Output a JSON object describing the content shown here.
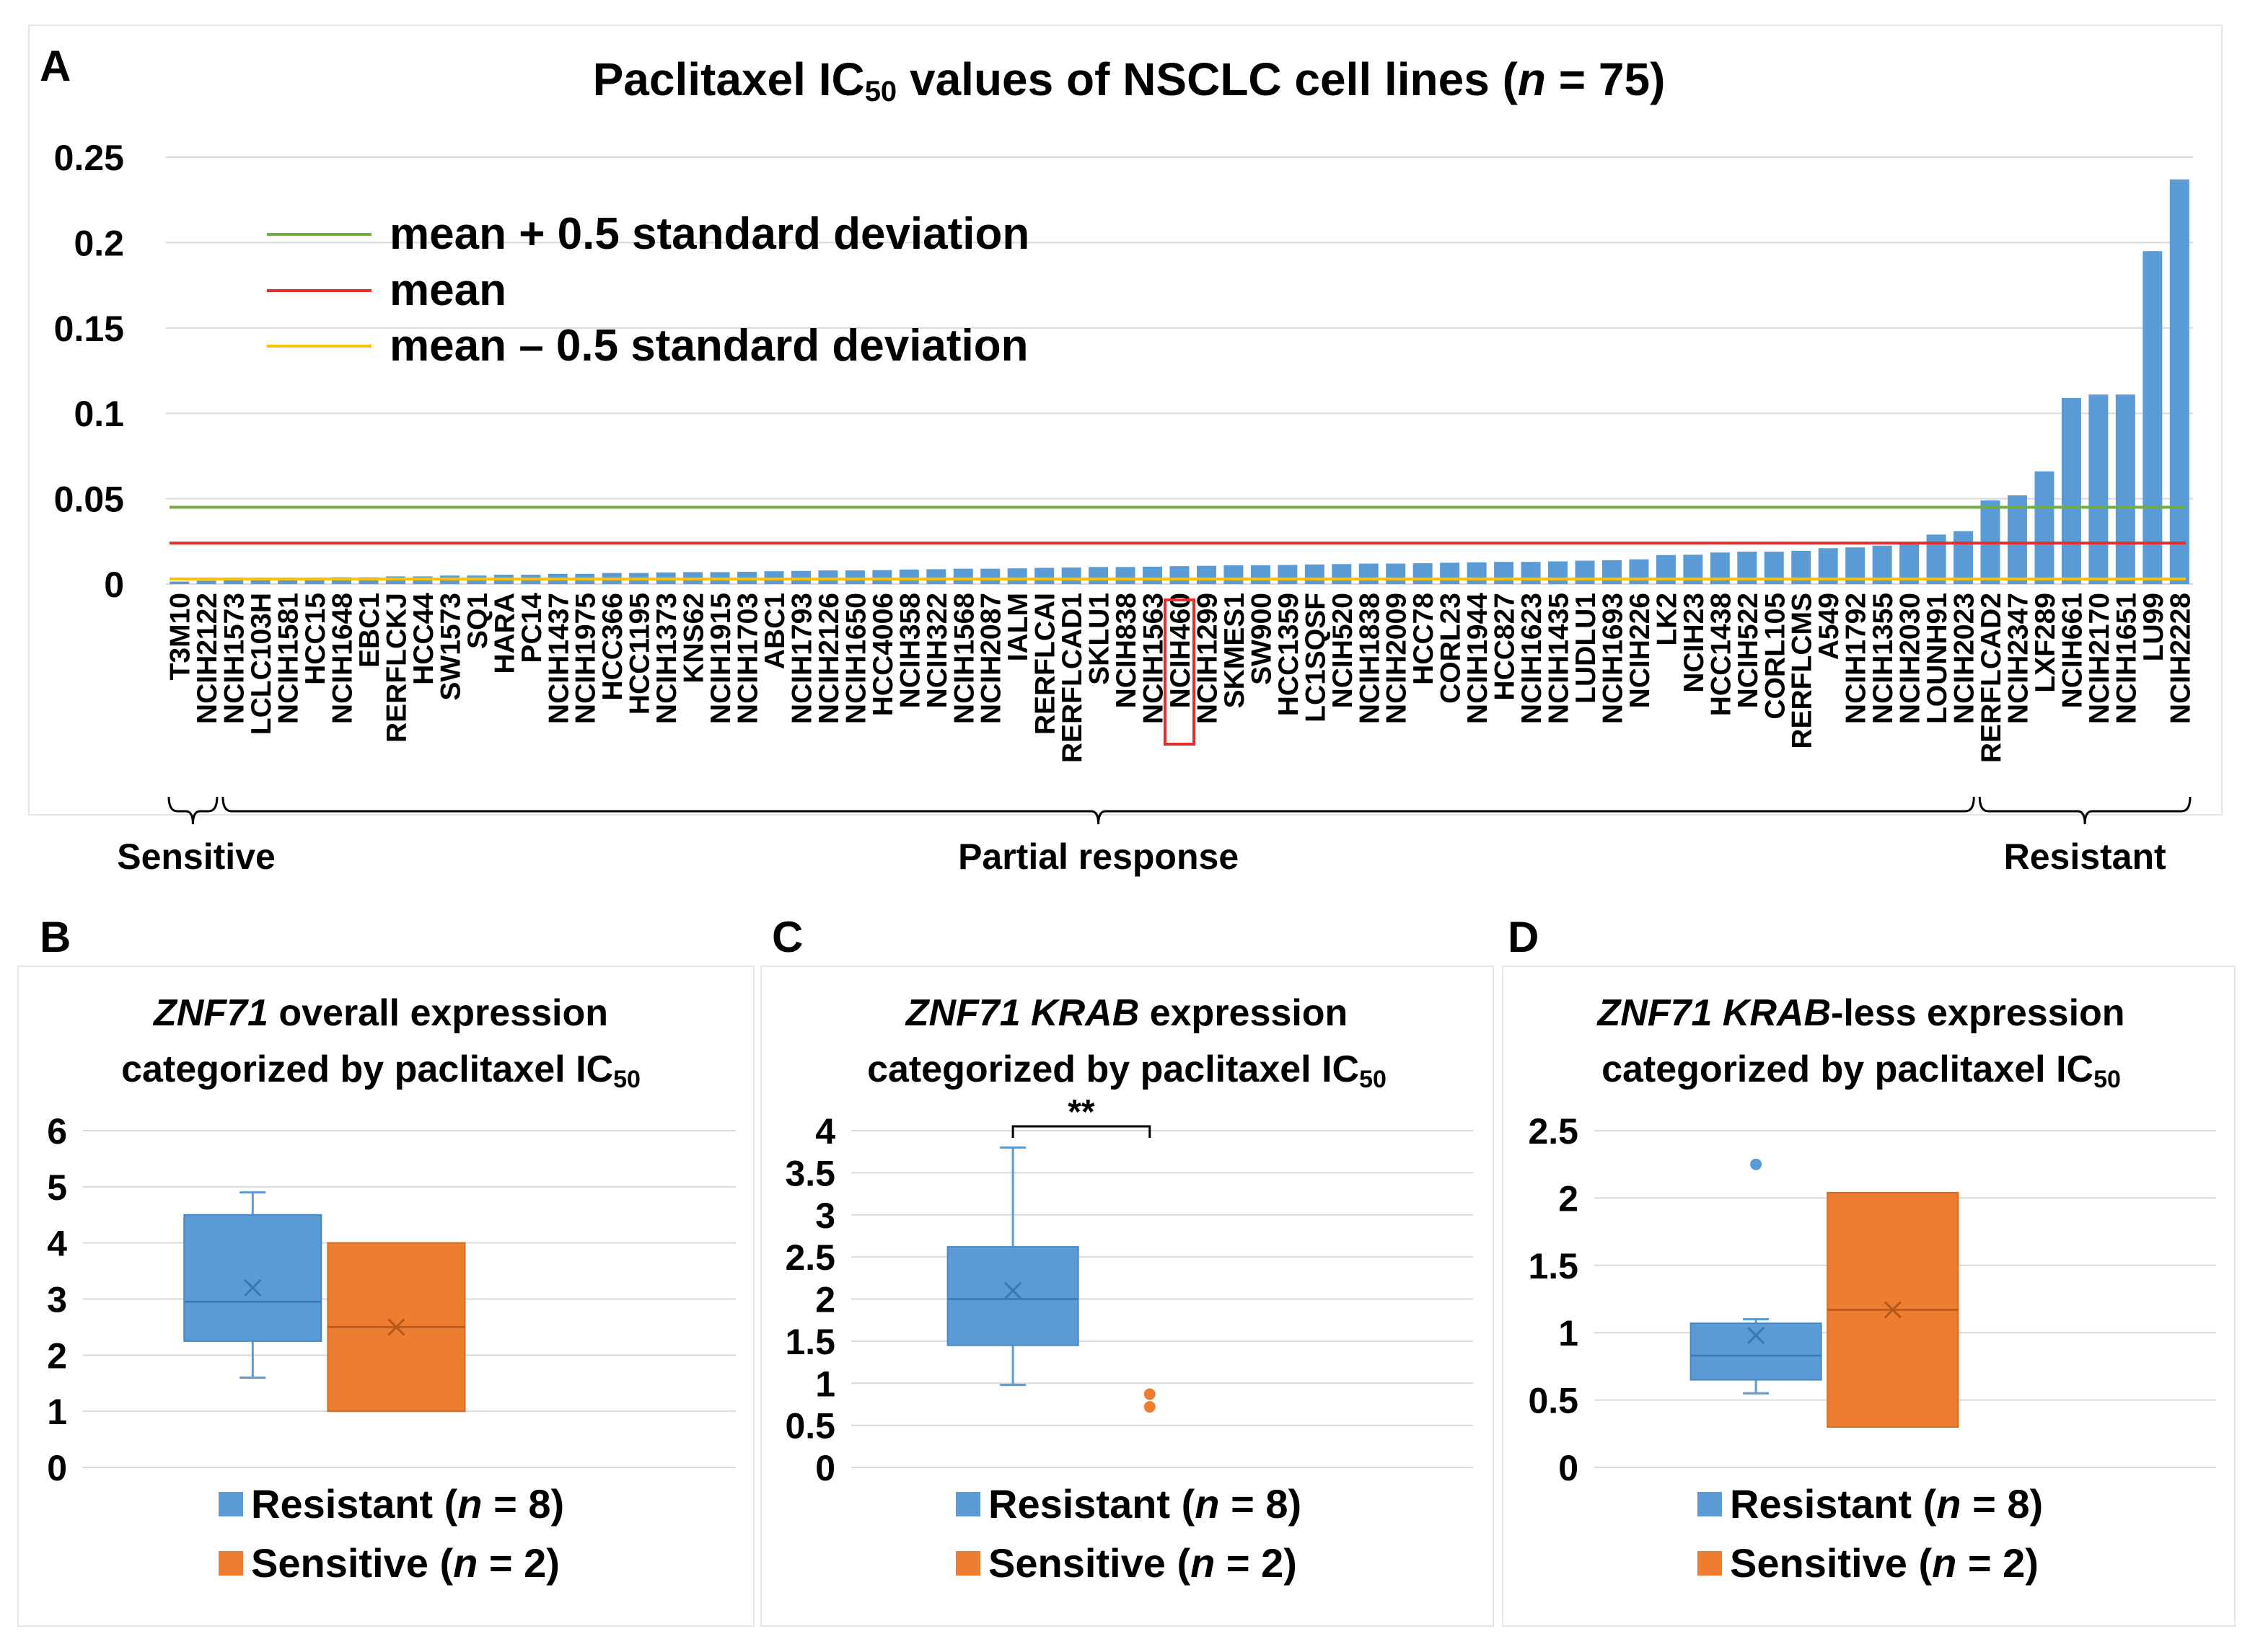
{
  "panels": {
    "a": {
      "letter": "A"
    },
    "b": {
      "letter": "B"
    },
    "c": {
      "letter": "C"
    },
    "d": {
      "letter": "D"
    }
  },
  "colors": {
    "bar": "#5b9bd5",
    "resistant": "#5b9bd5",
    "sensitive": "#ed7d31",
    "mean_plus": "#70ad47",
    "mean": "#e03030",
    "mean_minus": "#ffc000",
    "highlight": "#e03030",
    "grid": "#d9d9d9"
  },
  "chart_data": [
    {
      "id": "A",
      "type": "bar",
      "title_main": "Paclitaxel IC",
      "title_sub": "50",
      "title_rest": " values of NSCLC cell lines (",
      "title_n": "n",
      "title_end": " = 75)",
      "ylim": [
        0,
        0.25
      ],
      "yticks": [
        "0",
        "0.05",
        "0.1",
        "0.15",
        "0.2",
        "0.25"
      ],
      "ytick_values": [
        0,
        0.05,
        0.1,
        0.15,
        0.2,
        0.25
      ],
      "categories": [
        "T3M10",
        "NCIH2122",
        "NCIH1573",
        "LCLC103H",
        "NCIH1581",
        "HCC15",
        "NCIH1648",
        "EBC1",
        "RERFLCKJ",
        "HCC44",
        "SW1573",
        "SQ1",
        "HARA",
        "PC14",
        "NCIH1437",
        "NCIH1975",
        "HCC366",
        "HCC1195",
        "NCIH1373",
        "KNS62",
        "NCIH1915",
        "NCIH1703",
        "ABC1",
        "NCIH1793",
        "NCIH2126",
        "NCIH1650",
        "HCC4006",
        "NCIH358",
        "NCIH322",
        "NCIH1568",
        "NCIH2087",
        "IALM",
        "RERFLCAI",
        "RERFLCAD1",
        "SKLU1",
        "NCIH838",
        "NCIH1563",
        "NCIH460",
        "NCIH1299",
        "SKMES1",
        "SW900",
        "HCC1359",
        "LC1SQSF",
        "NCIH520",
        "NCIH1838",
        "NCIH2009",
        "HCC78",
        "CORL23",
        "NCIH1944",
        "HCC827",
        "NCIH1623",
        "NCIH1435",
        "LUDLU1",
        "NCIH1693",
        "NCIH226",
        "LK2",
        "NCIH23",
        "HCC1438",
        "NCIH522",
        "CORL105",
        "RERFLCMS",
        "A549",
        "NCIH1792",
        "NCIH1355",
        "NCIH2030",
        "LOUNH91",
        "NCIH2023",
        "RERFLCAD2",
        "NCIH2347",
        "LXF289",
        "NCIH661",
        "NCIH2170",
        "NCIH1651",
        "LU99",
        "NCIH2228"
      ],
      "values": [
        0.0015,
        0.002,
        0.0025,
        0.003,
        0.003,
        0.0035,
        0.004,
        0.004,
        0.0045,
        0.0045,
        0.005,
        0.005,
        0.0055,
        0.0055,
        0.006,
        0.006,
        0.0065,
        0.0065,
        0.0068,
        0.007,
        0.007,
        0.0072,
        0.0075,
        0.0077,
        0.008,
        0.008,
        0.0082,
        0.0085,
        0.0087,
        0.009,
        0.009,
        0.0092,
        0.0095,
        0.0097,
        0.01,
        0.01,
        0.0102,
        0.0105,
        0.0107,
        0.011,
        0.011,
        0.0112,
        0.0115,
        0.0117,
        0.012,
        0.012,
        0.0122,
        0.0125,
        0.0127,
        0.013,
        0.013,
        0.0133,
        0.0137,
        0.014,
        0.0145,
        0.017,
        0.0172,
        0.0185,
        0.019,
        0.019,
        0.0195,
        0.021,
        0.0215,
        0.0225,
        0.024,
        0.029,
        0.031,
        0.049,
        0.052,
        0.066,
        0.109,
        0.111,
        0.111,
        0.195,
        0.237
      ],
      "highlight": "NCIH460",
      "lines": {
        "mean_plus": 0.045,
        "mean": 0.024,
        "mean_minus": 0.003
      },
      "legend": [
        {
          "key": "mean_plus",
          "label": "mean + 0.5 standard deviation"
        },
        {
          "key": "mean",
          "label": "mean"
        },
        {
          "key": "mean_minus",
          "label": "mean – 0.5 standard deviation"
        }
      ],
      "groups": [
        {
          "label": "Sensitive",
          "from": 0,
          "to": 1
        },
        {
          "label": "Partial response",
          "from": 2,
          "to": 66
        },
        {
          "label": "Resistant",
          "from": 67,
          "to": 74
        }
      ]
    },
    {
      "id": "B",
      "type": "box",
      "title_gene": "ZNF71",
      "title_line1_rest": " overall expression",
      "title_line2": "categorized by paclitaxel IC",
      "title_sub": "50",
      "ylim": [
        0,
        6
      ],
      "yticks": [
        "0",
        "1",
        "2",
        "3",
        "4",
        "5",
        "6"
      ],
      "ytick_values": [
        0,
        1,
        2,
        3,
        4,
        5,
        6
      ],
      "series": [
        {
          "name": "Resistant",
          "n": "n",
          "count": " = 8)",
          "min": 1.6,
          "q1": 2.25,
          "median": 2.95,
          "q3": 4.5,
          "max": 4.9,
          "mean": 3.2,
          "outliers": []
        },
        {
          "name": "Sensitive",
          "n": "n",
          "count": " = 2)",
          "min": 1.0,
          "q1": 1.0,
          "median": 2.5,
          "q3": 4.0,
          "max": 4.0,
          "mean": 2.5,
          "outliers": []
        }
      ],
      "significance": ""
    },
    {
      "id": "C",
      "type": "box",
      "title_gene": "ZNF71 KRAB",
      "title_line1_rest": " expression",
      "title_line2": "categorized by paclitaxel IC",
      "title_sub": "50",
      "ylim": [
        0,
        4
      ],
      "yticks": [
        "0",
        "0.5",
        "1",
        "1.5",
        "2",
        "2.5",
        "3",
        "3.5",
        "4"
      ],
      "ytick_values": [
        0,
        0.5,
        1,
        1.5,
        2,
        2.5,
        3,
        3.5,
        4
      ],
      "series": [
        {
          "name": "Resistant",
          "n": "n",
          "count": " = 8)",
          "min": 0.98,
          "q1": 1.45,
          "median": 2.0,
          "q3": 2.62,
          "max": 3.8,
          "mean": 2.1,
          "outliers": []
        },
        {
          "name": "Sensitive",
          "n": "n",
          "count": " = 2)",
          "min": null,
          "q1": null,
          "median": null,
          "q3": null,
          "max": null,
          "mean": null,
          "outliers": [
            0.87,
            0.72
          ]
        }
      ],
      "significance": "**"
    },
    {
      "id": "D",
      "type": "box",
      "title_gene": "ZNF71 KRAB",
      "title_line1_rest": "-less expression",
      "title_line2": "categorized by paclitaxel IC",
      "title_sub": "50",
      "ylim": [
        0,
        2.5
      ],
      "yticks": [
        "0",
        "0.5",
        "1",
        "1.5",
        "2",
        "2.5"
      ],
      "ytick_values": [
        0,
        0.5,
        1,
        1.5,
        2,
        2.5
      ],
      "series": [
        {
          "name": "Resistant",
          "n": "n",
          "count": " = 8)",
          "min": 0.55,
          "q1": 0.65,
          "median": 0.83,
          "q3": 1.07,
          "max": 1.1,
          "mean": 0.98,
          "outliers": [
            2.25
          ]
        },
        {
          "name": "Sensitive",
          "n": "n",
          "count": " = 2)",
          "min": 0.3,
          "q1": 0.3,
          "median": 1.17,
          "q3": 2.04,
          "max": 2.04,
          "mean": 1.17,
          "outliers": []
        }
      ],
      "significance": ""
    }
  ]
}
